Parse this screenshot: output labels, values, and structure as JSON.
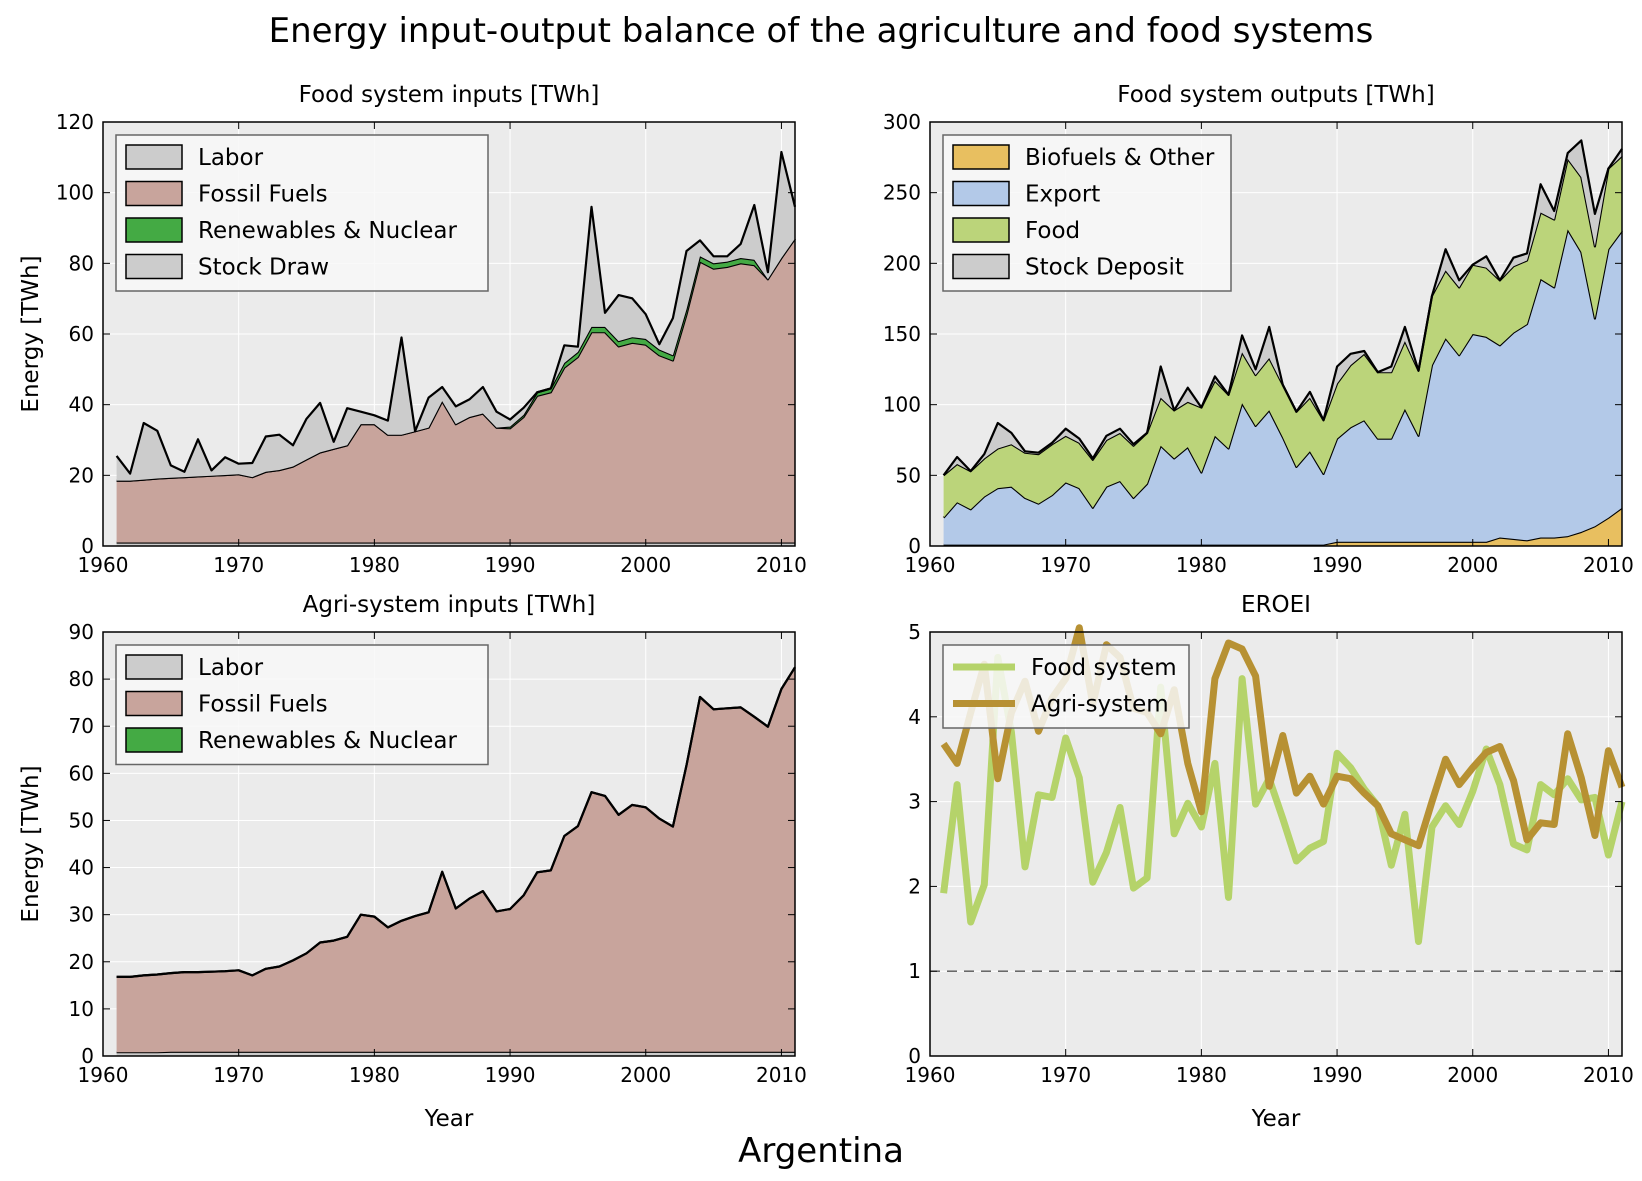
{
  "figure": {
    "title": "Energy input-output balance of the agriculture and food systems",
    "footer": "Argentina"
  },
  "chart_data": [
    {
      "type": "area",
      "title": "Food system inputs [TWh]",
      "xlabel": "",
      "ylabel": "Energy [TWh]",
      "xlim": [
        1960,
        2011
      ],
      "ylim": [
        0,
        120
      ],
      "xticks": [
        1960,
        1970,
        1980,
        1990,
        2000,
        2010
      ],
      "yticks": [
        0,
        20,
        40,
        60,
        80,
        100,
        120
      ],
      "grid": true,
      "legend_position": "top-left",
      "years": [
        1961,
        1962,
        1963,
        1964,
        1965,
        1966,
        1967,
        1968,
        1969,
        1970,
        1971,
        1972,
        1973,
        1974,
        1975,
        1976,
        1977,
        1978,
        1979,
        1980,
        1981,
        1982,
        1983,
        1984,
        1985,
        1986,
        1987,
        1988,
        1989,
        1990,
        1991,
        1992,
        1993,
        1994,
        1995,
        1996,
        1997,
        1998,
        1999,
        2000,
        2001,
        2002,
        2003,
        2004,
        2005,
        2006,
        2007,
        2008,
        2009,
        2010,
        2011
      ],
      "series": [
        {
          "name": "Labor",
          "color": "#cccccc",
          "values": [
            1,
            1,
            1,
            1,
            1,
            1,
            1,
            1,
            1,
            1,
            1,
            1,
            1,
            1,
            1,
            1,
            1,
            1,
            1,
            1,
            1,
            1,
            1,
            1,
            1,
            1,
            1,
            1,
            1,
            1,
            1,
            1,
            1,
            1,
            1,
            1,
            1,
            1,
            1,
            1,
            1,
            1,
            1,
            1,
            1,
            1,
            1,
            1,
            1,
            1,
            1
          ]
        },
        {
          "name": "Fossil Fuels",
          "color": "#c8a49c",
          "values": [
            17.5,
            17.5,
            17.8,
            18.1,
            18.3,
            18.5,
            18.7,
            18.9,
            19.1,
            19.3,
            18.5,
            20,
            20.5,
            21.5,
            23.5,
            25.5,
            26.5,
            27.5,
            33.5,
            33.5,
            30.5,
            30.5,
            31.5,
            32.5,
            40,
            33.5,
            35.5,
            36.5,
            32.5,
            32.3,
            35.5,
            41.5,
            42.5,
            49.5,
            52.5,
            59.5,
            59.5,
            55.5,
            56.5,
            56,
            53,
            51.5,
            64.5,
            79.5,
            77.5,
            78,
            79,
            78.5,
            74.5,
            80.5,
            86
          ]
        },
        {
          "name": "Renewables & Nuclear",
          "color": "#44aa44",
          "values": [
            0,
            0,
            0,
            0,
            0,
            0,
            0,
            0,
            0,
            0,
            0,
            0,
            0,
            0,
            0,
            0,
            0,
            0,
            0,
            0,
            0,
            0,
            0,
            0,
            0,
            0,
            0,
            0,
            0,
            0.5,
            0.6,
            1,
            1.1,
            1.3,
            1.4,
            1.5,
            1.5,
            1.5,
            1.6,
            1.6,
            1.6,
            1.5,
            1.5,
            1.5,
            1.5,
            1.5,
            1.5,
            1.5,
            0,
            0,
            0
          ]
        },
        {
          "name": "Stock Draw",
          "color": "#cccccc",
          "values": [
            7,
            2,
            16,
            13.5,
            3.5,
            1.5,
            10.5,
            1.5,
            5,
            3,
            4,
            10,
            10,
            6,
            11.5,
            14,
            2,
            10.5,
            3.5,
            2.5,
            4,
            27.5,
            0,
            8.5,
            4,
            5,
            5,
            7.5,
            4.5,
            2,
            2,
            0,
            0,
            5,
            1.5,
            34,
            4,
            13,
            11,
            7,
            1.5,
            10.5,
            16.5,
            4.5,
            2,
            1.5,
            4,
            15.5,
            2,
            30,
            9
          ]
        }
      ]
    },
    {
      "type": "area",
      "title": "Food system outputs [TWh]",
      "xlabel": "",
      "ylabel": "",
      "xlim": [
        1960,
        2011
      ],
      "ylim": [
        0,
        300
      ],
      "xticks": [
        1960,
        1970,
        1980,
        1990,
        2000,
        2010
      ],
      "yticks": [
        0,
        50,
        100,
        150,
        200,
        250,
        300
      ],
      "grid": true,
      "legend_position": "top-left",
      "years": [
        1961,
        1962,
        1963,
        1964,
        1965,
        1966,
        1967,
        1968,
        1969,
        1970,
        1971,
        1972,
        1973,
        1974,
        1975,
        1976,
        1977,
        1978,
        1979,
        1980,
        1981,
        1982,
        1983,
        1984,
        1985,
        1986,
        1987,
        1988,
        1989,
        1990,
        1991,
        1992,
        1993,
        1994,
        1995,
        1996,
        1997,
        1998,
        1999,
        2000,
        2001,
        2002,
        2003,
        2004,
        2005,
        2006,
        2007,
        2008,
        2009,
        2010,
        2011
      ],
      "series": [
        {
          "name": "Biofuels & Other",
          "color": "#e8bf60",
          "values": [
            1,
            1,
            1,
            1,
            1,
            1,
            1,
            1,
            1,
            1,
            1,
            1,
            1,
            1,
            1,
            1,
            1,
            1,
            1,
            1,
            1,
            1,
            1,
            1,
            1,
            1,
            1,
            1,
            1,
            3,
            3,
            3,
            3,
            3,
            3,
            3,
            3,
            3,
            3,
            3,
            3,
            6,
            5,
            4,
            6,
            6,
            7,
            10,
            14,
            20,
            27
          ]
        },
        {
          "name": "Export",
          "color": "#b3c9e8",
          "values": [
            19,
            30,
            25,
            34,
            40,
            41,
            33,
            29,
            35,
            44,
            40,
            26,
            41,
            45,
            33,
            43,
            70,
            61,
            69,
            51,
            77,
            68,
            100,
            84,
            95,
            76,
            55,
            66,
            50,
            73,
            81,
            86,
            73,
            73,
            94,
            75,
            125,
            144,
            132,
            147,
            145,
            136,
            146,
            153,
            183,
            177,
            217,
            198,
            147,
            190,
            196
          ]
        },
        {
          "name": "Food",
          "color": "#bbd47a",
          "values": [
            30,
            27,
            27,
            27,
            28,
            30,
            32,
            35,
            36,
            33,
            32,
            34,
            33,
            34,
            37,
            36,
            34,
            34,
            32,
            46,
            39,
            38,
            36,
            36,
            37,
            37,
            39,
            38,
            38,
            39,
            44,
            47,
            47,
            47,
            48,
            46,
            49,
            48,
            48,
            49,
            49,
            46,
            47,
            45,
            47,
            48,
            50,
            53,
            51,
            57,
            53
          ]
        },
        {
          "name": "Stock Deposit",
          "color": "#cccccc",
          "values": [
            0,
            5,
            0,
            3,
            18,
            8,
            1,
            1,
            1,
            5,
            3,
            1,
            3,
            3,
            1,
            0,
            22,
            0,
            10,
            0,
            3,
            0,
            12,
            4,
            22,
            0,
            0,
            4,
            0,
            12,
            8,
            2,
            0,
            4,
            10,
            0,
            0,
            15,
            5,
            0,
            8,
            0,
            6,
            5,
            20,
            6,
            4,
            26,
            23,
            0,
            5
          ]
        }
      ]
    },
    {
      "type": "area",
      "title": "Agri-system inputs [TWh]",
      "xlabel": "Year",
      "ylabel": "Energy [TWh]",
      "xlim": [
        1960,
        2011
      ],
      "ylim": [
        0,
        90
      ],
      "xticks": [
        1960,
        1970,
        1980,
        1990,
        2000,
        2010
      ],
      "yticks": [
        0,
        10,
        20,
        30,
        40,
        50,
        60,
        70,
        80,
        90
      ],
      "grid": true,
      "legend_position": "top-left",
      "years": [
        1961,
        1962,
        1963,
        1964,
        1965,
        1966,
        1967,
        1968,
        1969,
        1970,
        1971,
        1972,
        1973,
        1974,
        1975,
        1976,
        1977,
        1978,
        1979,
        1980,
        1981,
        1982,
        1983,
        1984,
        1985,
        1986,
        1987,
        1988,
        1989,
        1990,
        1991,
        1992,
        1993,
        1994,
        1995,
        1996,
        1997,
        1998,
        1999,
        2000,
        2001,
        2002,
        2003,
        2004,
        2005,
        2006,
        2007,
        2008,
        2009,
        2010,
        2011
      ],
      "series": [
        {
          "name": "Labor",
          "color": "#cccccc",
          "values": [
            0.8,
            0.8,
            0.8,
            0.8,
            0.9,
            0.9,
            0.9,
            0.9,
            0.9,
            0.9,
            0.9,
            0.9,
            0.9,
            0.9,
            0.9,
            0.9,
            0.9,
            0.9,
            0.9,
            0.9,
            0.9,
            0.9,
            0.9,
            0.9,
            0.9,
            0.9,
            0.9,
            0.9,
            0.9,
            0.9,
            0.9,
            0.9,
            0.9,
            0.9,
            0.9,
            0.9,
            0.9,
            0.9,
            0.9,
            0.9,
            0.9,
            0.9,
            0.9,
            0.9,
            0.9,
            0.9,
            0.9,
            0.9,
            0.9,
            0.9,
            0.9
          ]
        },
        {
          "name": "Fossil Fuels",
          "color": "#c8a49c",
          "values": [
            16,
            16,
            16.3,
            16.5,
            16.7,
            16.9,
            16.9,
            17,
            17.1,
            17.3,
            16.2,
            17.6,
            18.1,
            19.4,
            20.9,
            23.2,
            23.6,
            24.4,
            29.1,
            28.7,
            26.4,
            27.8,
            28.8,
            29.6,
            38.2,
            30.4,
            32.5,
            34.1,
            29.8,
            30.3,
            33.2,
            38.1,
            38.5,
            45.8,
            47.9,
            55.1,
            54.3,
            50.3,
            52.4,
            51.9,
            49.5,
            47.8,
            60.8,
            75.3,
            72.7,
            72.9,
            73.1,
            71.1,
            69,
            77,
            81.6
          ]
        },
        {
          "name": "Renewables & Nuclear",
          "color": "#44aa44",
          "values": [
            0,
            0,
            0,
            0,
            0,
            0,
            0,
            0,
            0,
            0,
            0,
            0,
            0,
            0,
            0,
            0,
            0,
            0,
            0,
            0,
            0,
            0,
            0,
            0,
            0,
            0,
            0,
            0,
            0,
            0,
            0,
            0,
            0,
            0,
            0,
            0,
            0,
            0,
            0,
            0,
            0,
            0,
            0,
            0,
            0,
            0,
            0,
            0,
            0,
            0,
            0
          ]
        }
      ]
    },
    {
      "type": "line",
      "title": "EROEI",
      "xlabel": "Year",
      "ylabel": "",
      "xlim": [
        1960,
        2011
      ],
      "ylim": [
        0,
        5
      ],
      "xticks": [
        1960,
        1970,
        1980,
        1990,
        2000,
        2010
      ],
      "yticks": [
        0,
        1,
        2,
        3,
        4,
        5
      ],
      "grid": true,
      "reference_line": 1,
      "legend_position": "top-left",
      "x": [
        1961,
        1962,
        1963,
        1964,
        1965,
        1966,
        1967,
        1968,
        1969,
        1970,
        1971,
        1972,
        1973,
        1974,
        1975,
        1976,
        1977,
        1978,
        1979,
        1980,
        1981,
        1982,
        1983,
        1984,
        1985,
        1986,
        1987,
        1988,
        1989,
        1990,
        1991,
        1992,
        1993,
        1994,
        1995,
        1996,
        1997,
        1998,
        1999,
        2000,
        2001,
        2002,
        2003,
        2004,
        2005,
        2006,
        2007,
        2008,
        2009,
        2010,
        2011
      ],
      "series": [
        {
          "name": "Food system",
          "color": "#b5d36a",
          "values": [
            1.92,
            3.2,
            1.58,
            2.02,
            4.7,
            3.82,
            2.23,
            3.08,
            3.05,
            3.75,
            3.28,
            2.05,
            2.4,
            2.93,
            1.98,
            2.1,
            4.35,
            2.62,
            2.98,
            2.7,
            3.45,
            1.87,
            4.45,
            2.97,
            3.27,
            2.8,
            2.3,
            2.45,
            2.53,
            3.57,
            3.4,
            3.15,
            2.95,
            2.25,
            2.85,
            1.35,
            2.7,
            2.95,
            2.73,
            3.12,
            3.62,
            3.2,
            2.5,
            2.43,
            3.2,
            3.08,
            3.27,
            3.02,
            3.05,
            2.37,
            3.0
          ]
        },
        {
          "name": "Agri-system",
          "color": "#b79133",
          "values": [
            3.68,
            3.45,
            4.05,
            4.62,
            3.27,
            4.05,
            4.42,
            3.83,
            4.22,
            4.45,
            5.05,
            4.15,
            4.85,
            4.7,
            4.1,
            4.05,
            3.8,
            4.32,
            3.45,
            2.88,
            4.45,
            4.87,
            4.8,
            4.48,
            3.18,
            3.78,
            3.1,
            3.3,
            2.97,
            3.3,
            3.27,
            3.1,
            2.95,
            2.62,
            2.55,
            2.48,
            3.0,
            3.5,
            3.2,
            3.4,
            3.58,
            3.65,
            3.25,
            2.55,
            2.75,
            2.73,
            3.8,
            3.28,
            2.6,
            3.6,
            3.17
          ]
        }
      ]
    }
  ]
}
